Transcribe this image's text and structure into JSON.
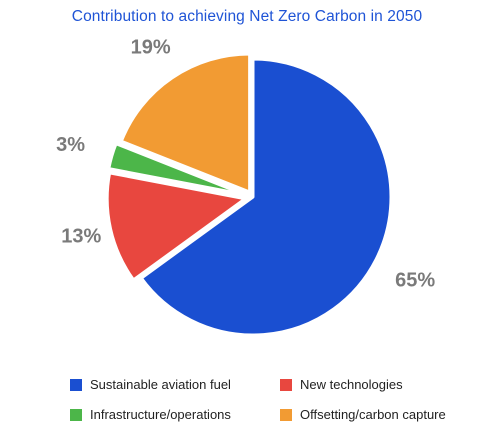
{
  "chart_data": {
    "type": "pie",
    "title": "Contribution to achieving Net Zero Carbon in 2050",
    "slices": [
      {
        "label": "Sustainable aviation fuel",
        "value": 65,
        "display": "65%",
        "color": "#1a4fd1"
      },
      {
        "label": "New technologies",
        "value": 13,
        "display": "13%",
        "color": "#e8473f"
      },
      {
        "label": "Infrastructure/operations",
        "value": 3,
        "display": "3%",
        "color": "#4cb649"
      },
      {
        "label": "Offsetting/carbon capture",
        "value": 19,
        "display": "19%",
        "color": "#f29b33"
      }
    ],
    "legend": {
      "placement": "bottom",
      "entries": [
        "Sustainable aviation fuel",
        "New technologies",
        "Infrastructure/operations",
        "Offsetting/carbon capture"
      ]
    }
  }
}
